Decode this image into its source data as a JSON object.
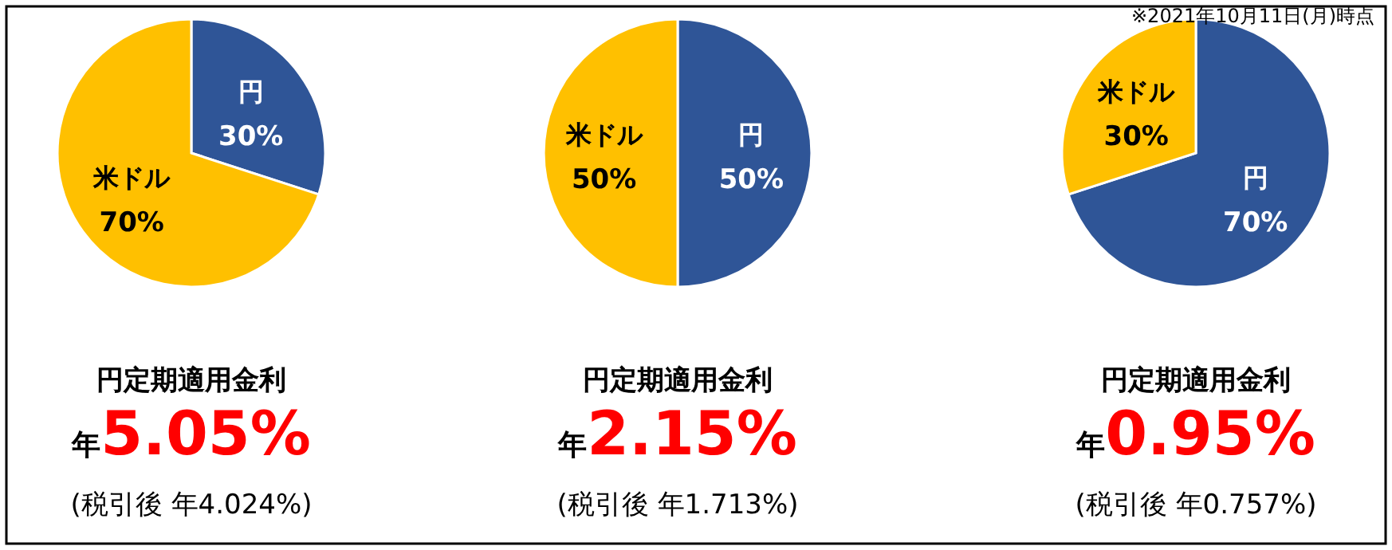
{
  "chart_data": [
    {
      "type": "pie",
      "categories": [
        "円",
        "米ドル"
      ],
      "values": [
        30,
        70
      ],
      "value_labels": [
        "30%",
        "70%"
      ],
      "colors": [
        "#2f5597",
        "#ffc000"
      ],
      "annotations": [
        "円定期適用金利",
        "年",
        "5.05%",
        "(税引後 年4.024%)"
      ]
    },
    {
      "type": "pie",
      "categories": [
        "円",
        "米ドル"
      ],
      "values": [
        50,
        50
      ],
      "value_labels": [
        "50%",
        "50%"
      ],
      "colors": [
        "#2f5597",
        "#ffc000"
      ],
      "annotations": [
        "円定期適用金利",
        "年",
        "2.15%",
        "(税引後 年1.713%)"
      ]
    },
    {
      "type": "pie",
      "subtitle": "※2021年10月11日(月)時点",
      "categories": [
        "円",
        "米ドル"
      ],
      "values": [
        70,
        30
      ],
      "value_labels": [
        "70%",
        "30%"
      ],
      "colors": [
        "#2f5597",
        "#ffc000"
      ],
      "annotations": [
        "円定期適用金利",
        "年",
        "0.95%",
        "(税引後 年0.757%)"
      ]
    }
  ]
}
